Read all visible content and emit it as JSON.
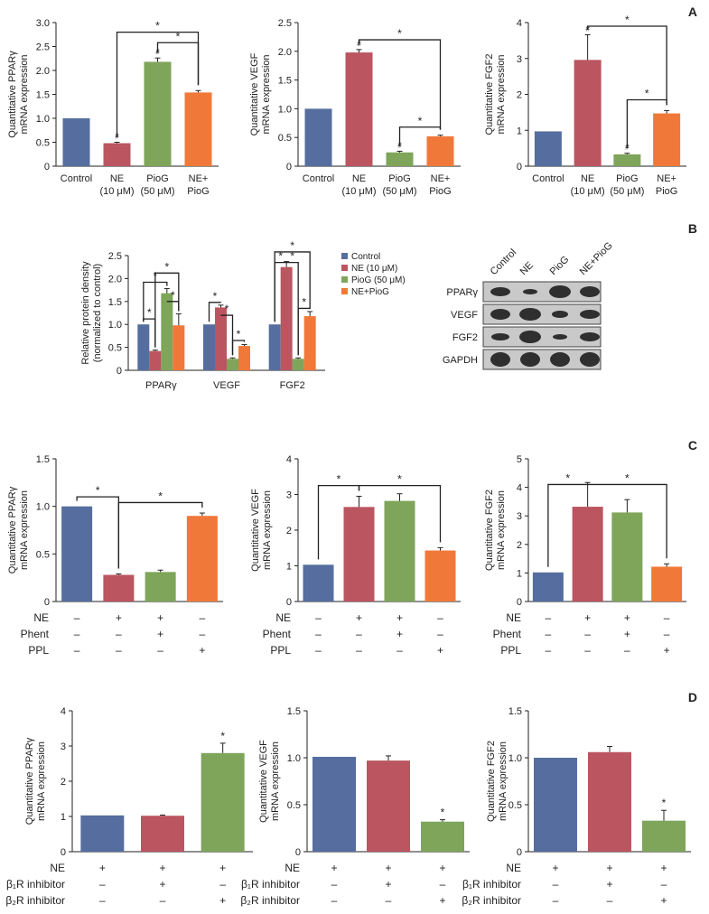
{
  "panel_letters": [
    "A",
    "B",
    "C",
    "D"
  ],
  "blot": {
    "lanes": [
      "Control",
      "NE",
      "PioG",
      "NE+PioG"
    ],
    "rows": [
      "PPARγ",
      "VEGF",
      "FGF2",
      "GAPDH"
    ]
  },
  "colors": {
    "control": "#556e9f",
    "ne": "#bb5560",
    "piog": "#7ea55a",
    "combo": "#f0793a"
  },
  "chart_data": [
    {
      "type": "bar",
      "panel": "A",
      "categories": [
        "Control",
        "NE\n(10 μM)",
        "PioG\n(50 μM)",
        "NE+\nPioG"
      ],
      "values": [
        1.0,
        0.48,
        2.18,
        1.54
      ],
      "errors": [
        0,
        0.02,
        0.08,
        0.04
      ],
      "colors": [
        "control",
        "ne",
        "piog",
        "combo"
      ],
      "ylabel": [
        "Quantitative PPARγ",
        "mRNA expression"
      ],
      "ylim": [
        0,
        3.0
      ],
      "yticks": [
        0,
        0.5,
        1.0,
        1.5,
        2.0,
        2.5,
        3.0
      ],
      "ytick_labels": [
        "0",
        "0.5",
        "1.0",
        "1.5",
        "2.0",
        "2.5",
        "3.0"
      ],
      "point_marks": [
        {
          "bar": 1,
          "text": "#"
        },
        {
          "bar": 2,
          "text": "#"
        }
      ],
      "significance": [
        {
          "from": 1,
          "to": 3,
          "level": 2.8,
          "text": "*"
        },
        {
          "from": 2,
          "to": 3,
          "level": 2.58,
          "text": "*"
        }
      ]
    },
    {
      "type": "bar",
      "panel": "A",
      "categories": [
        "Control",
        "NE\n(10 μM)",
        "PioG\n(50 μM)",
        "NE+\nPioG"
      ],
      "values": [
        1.0,
        1.98,
        0.24,
        0.52
      ],
      "errors": [
        0,
        0.05,
        0.02,
        0.02
      ],
      "colors": [
        "control",
        "ne",
        "piog",
        "combo"
      ],
      "ylabel": [
        "Quantitative VEGF",
        "mRNA expression"
      ],
      "ylim": [
        0,
        2.5
      ],
      "yticks": [
        0,
        0.5,
        1.0,
        1.5,
        2.0,
        2.5
      ],
      "ytick_labels": [
        "0",
        "0.5",
        "1.0",
        "1.5",
        "2.0",
        "2.5"
      ],
      "point_marks": [
        {
          "bar": 1,
          "text": "#"
        },
        {
          "bar": 2,
          "text": "#"
        }
      ],
      "significance": [
        {
          "from": 1,
          "to": 3,
          "level": 2.2,
          "text": "*"
        },
        {
          "from": 2,
          "to": 3,
          "level": 0.68,
          "text": "*"
        }
      ]
    },
    {
      "type": "bar",
      "panel": "A",
      "categories": [
        "Control",
        "NE\n(10 μM)",
        "PioG\n(50 μM)",
        "NE+\nPioG"
      ],
      "values": [
        0.97,
        2.96,
        0.33,
        1.47
      ],
      "errors": [
        0,
        0.7,
        0.03,
        0.08
      ],
      "colors": [
        "control",
        "ne",
        "piog",
        "combo"
      ],
      "ylabel": [
        "Quantitative FGF2",
        "mRNA expression"
      ],
      "ylim": [
        0,
        4
      ],
      "yticks": [
        0,
        1,
        2,
        3,
        4
      ],
      "ytick_labels": [
        "0",
        "1",
        "2",
        "3",
        "4"
      ],
      "point_marks": [
        {
          "bar": 1,
          "text": "#"
        },
        {
          "bar": 2,
          "text": "#"
        }
      ],
      "significance": [
        {
          "from": 1,
          "to": 3,
          "level": 3.9,
          "text": "*"
        },
        {
          "from": 2,
          "to": 3,
          "level": 1.85,
          "text": "*"
        }
      ]
    },
    {
      "type": "bar",
      "panel": "B",
      "groups": [
        "PPARγ",
        "VEGF",
        "FGF2"
      ],
      "series": [
        {
          "name": "Control",
          "color": "control",
          "values": [
            1.0,
            1.0,
            1.0
          ],
          "errors": [
            0,
            0,
            0
          ]
        },
        {
          "name": "NE (10 μM)",
          "color": "ne",
          "values": [
            0.42,
            1.37,
            2.25
          ],
          "errors": [
            0.02,
            0.05,
            0.12
          ]
        },
        {
          "name": "PioG (50 μM)",
          "color": "piog",
          "values": [
            1.68,
            0.25,
            0.25
          ],
          "errors": [
            0.1,
            0.02,
            0.02
          ]
        },
        {
          "name": "NE+PioG",
          "color": "combo",
          "values": [
            0.98,
            0.53,
            1.18
          ],
          "errors": [
            0.25,
            0.03,
            0.1
          ]
        }
      ],
      "ylabel": [
        "Relative protein density",
        "(normalized to control)"
      ],
      "ylim": [
        0,
        2.5
      ],
      "yticks": [
        0,
        0.5,
        1.0,
        1.5,
        2.0,
        2.5
      ],
      "ytick_labels": [
        "0",
        "0.5",
        "1.0",
        "1.5",
        "2.0",
        "2.5"
      ],
      "legend": "right",
      "significance": [
        {
          "group": 0,
          "from": 0,
          "to": 1,
          "level": 1.12,
          "text": "*"
        },
        {
          "group": 0,
          "from": 0,
          "to": 2,
          "level": 1.92,
          "text": "*"
        },
        {
          "group": 0,
          "from": 1,
          "to": 3,
          "level": 2.12,
          "text": "*"
        },
        {
          "group": 0,
          "from": 2,
          "to": 3,
          "level": 1.5,
          "text": "*"
        },
        {
          "group": 1,
          "from": 0,
          "to": 1,
          "level": 1.48,
          "text": "*"
        },
        {
          "group": 1,
          "from": 1,
          "to": 2,
          "level": 1.2,
          "text": "*"
        },
        {
          "group": 1,
          "from": 2,
          "to": 3,
          "level": 0.65,
          "text": "*"
        },
        {
          "group": 2,
          "from": 0,
          "to": 3,
          "level": 2.58,
          "text": "*"
        },
        {
          "group": 2,
          "from": 0,
          "to": 1,
          "level": 2.35,
          "text": "*"
        },
        {
          "group": 2,
          "from": 1,
          "to": 2,
          "level": 2.35,
          "text": "*"
        },
        {
          "group": 2,
          "from": 2,
          "to": 3,
          "level": 1.35,
          "text": "*"
        }
      ]
    },
    {
      "type": "bar",
      "panel": "C",
      "values": [
        1.0,
        0.28,
        0.31,
        0.9
      ],
      "errors": [
        0,
        0.01,
        0.02,
        0.03
      ],
      "colors": [
        "control",
        "ne",
        "piog",
        "combo"
      ],
      "ylabel": [
        "Quantitative PPARγ",
        "mRNA expression"
      ],
      "ylim": [
        0,
        1.5
      ],
      "yticks": [
        0,
        0.5,
        1.0,
        1.5
      ],
      "ytick_labels": [
        "0",
        "0.5",
        "1.0",
        "1.5"
      ],
      "treatments": [
        {
          "label": "NE",
          "marks": [
            "–",
            "+",
            "+",
            "–"
          ]
        },
        {
          "label": "Phent",
          "marks": [
            "–",
            "–",
            "+",
            "–"
          ]
        },
        {
          "label": "PPL",
          "marks": [
            "–",
            "–",
            "–",
            "+"
          ]
        }
      ],
      "significance": [
        {
          "from": 0,
          "to": 1,
          "level": 1.1,
          "text": "*"
        },
        {
          "from": 1,
          "to": 3,
          "level": 1.04,
          "text": "*"
        }
      ]
    },
    {
      "type": "bar",
      "panel": "C",
      "values": [
        1.03,
        2.65,
        2.82,
        1.43
      ],
      "errors": [
        0,
        0.3,
        0.2,
        0.08
      ],
      "colors": [
        "control",
        "ne",
        "piog",
        "combo"
      ],
      "ylabel": [
        "Quantitative VEGF",
        "mRNA expression"
      ],
      "ylim": [
        0,
        4
      ],
      "yticks": [
        0,
        1,
        2,
        3,
        4
      ],
      "ytick_labels": [
        "0",
        "1",
        "2",
        "3",
        "4"
      ],
      "treatments": [
        {
          "label": "NE",
          "marks": [
            "–",
            "+",
            "+",
            "–"
          ]
        },
        {
          "label": "Phent",
          "marks": [
            "–",
            "–",
            "+",
            "–"
          ]
        },
        {
          "label": "PPL",
          "marks": [
            "–",
            "–",
            "–",
            "+"
          ]
        }
      ],
      "significance": [
        {
          "from": 0,
          "to": 1,
          "level": 3.25,
          "text": "*"
        },
        {
          "from": 1,
          "to": 3,
          "level": 3.25,
          "text": "*"
        }
      ]
    },
    {
      "type": "bar",
      "panel": "C",
      "values": [
        1.02,
        3.32,
        3.12,
        1.22
      ],
      "errors": [
        0,
        0.85,
        0.45,
        0.1
      ],
      "colors": [
        "control",
        "ne",
        "piog",
        "combo"
      ],
      "ylabel": [
        "Quantitative FGF2",
        "mRNA expression"
      ],
      "ylim": [
        0,
        5
      ],
      "yticks": [
        0,
        1,
        2,
        3,
        4,
        5
      ],
      "ytick_labels": [
        "0",
        "1",
        "2",
        "3",
        "4",
        "5"
      ],
      "treatments": [
        {
          "label": "NE",
          "marks": [
            "–",
            "+",
            "+",
            "–"
          ]
        },
        {
          "label": "Phent",
          "marks": [
            "–",
            "–",
            "+",
            "–"
          ]
        },
        {
          "label": "PPL",
          "marks": [
            "–",
            "–",
            "–",
            "+"
          ]
        }
      ],
      "significance": [
        {
          "from": 0,
          "to": 1,
          "level": 4.1,
          "text": "*"
        },
        {
          "from": 1,
          "to": 3,
          "level": 4.1,
          "text": "*"
        }
      ]
    },
    {
      "type": "bar",
      "panel": "D",
      "values": [
        1.03,
        1.02,
        2.8
      ],
      "errors": [
        0,
        0.02,
        0.28
      ],
      "colors": [
        "control",
        "ne",
        "piog"
      ],
      "ylabel": [
        "Quantitative PPARγ",
        "mRNA expression"
      ],
      "ylim": [
        0,
        4
      ],
      "yticks": [
        0,
        1,
        2,
        3,
        4
      ],
      "ytick_labels": [
        "0",
        "1",
        "2",
        "3",
        "4"
      ],
      "treatments": [
        {
          "label": "NE",
          "marks": [
            "+",
            "+",
            "+"
          ]
        },
        {
          "label": "β₁R inhibitor",
          "marks": [
            "–",
            "+",
            "–"
          ]
        },
        {
          "label": "β₂R inhibitor",
          "marks": [
            "–",
            "–",
            "+"
          ]
        }
      ],
      "point_marks": [
        {
          "bar": 2,
          "text": "*"
        }
      ]
    },
    {
      "type": "bar",
      "panel": "D",
      "values": [
        1.01,
        0.97,
        0.32
      ],
      "errors": [
        0,
        0.05,
        0.02
      ],
      "colors": [
        "control",
        "ne",
        "piog"
      ],
      "ylabel": [
        "Quantitative VEGF",
        "mRNA expression"
      ],
      "ylim": [
        0,
        1.5
      ],
      "yticks": [
        0,
        0.5,
        1.0,
        1.5
      ],
      "ytick_labels": [
        "0",
        "0.5",
        "1.0",
        "1.5"
      ],
      "treatments": [
        {
          "label": "NE",
          "marks": [
            "+",
            "+",
            "+"
          ]
        },
        {
          "label": "β₁R inhibitor",
          "marks": [
            "–",
            "+",
            "–"
          ]
        },
        {
          "label": "β₂R inhibitor",
          "marks": [
            "–",
            "–",
            "+"
          ]
        }
      ],
      "point_marks": [
        {
          "bar": 2,
          "text": "*"
        }
      ]
    },
    {
      "type": "bar",
      "panel": "D",
      "values": [
        1.0,
        1.06,
        0.33
      ],
      "errors": [
        0,
        0.06,
        0.11
      ],
      "colors": [
        "control",
        "ne",
        "piog"
      ],
      "ylabel": [
        "Quantitative FGF2",
        "mRNA expression"
      ],
      "ylim": [
        0,
        1.5
      ],
      "yticks": [
        0,
        0.5,
        1.0,
        1.5
      ],
      "ytick_labels": [
        "0",
        "0.5",
        "1.0",
        "1.5"
      ],
      "treatments": [
        {
          "label": "NE",
          "marks": [
            "+",
            "+",
            "+"
          ]
        },
        {
          "label": "β₁R inhibitor",
          "marks": [
            "–",
            "+",
            "–"
          ]
        },
        {
          "label": "β₂R inhibitor",
          "marks": [
            "–",
            "–",
            "+"
          ]
        }
      ],
      "point_marks": [
        {
          "bar": 2,
          "text": "*"
        }
      ]
    }
  ]
}
